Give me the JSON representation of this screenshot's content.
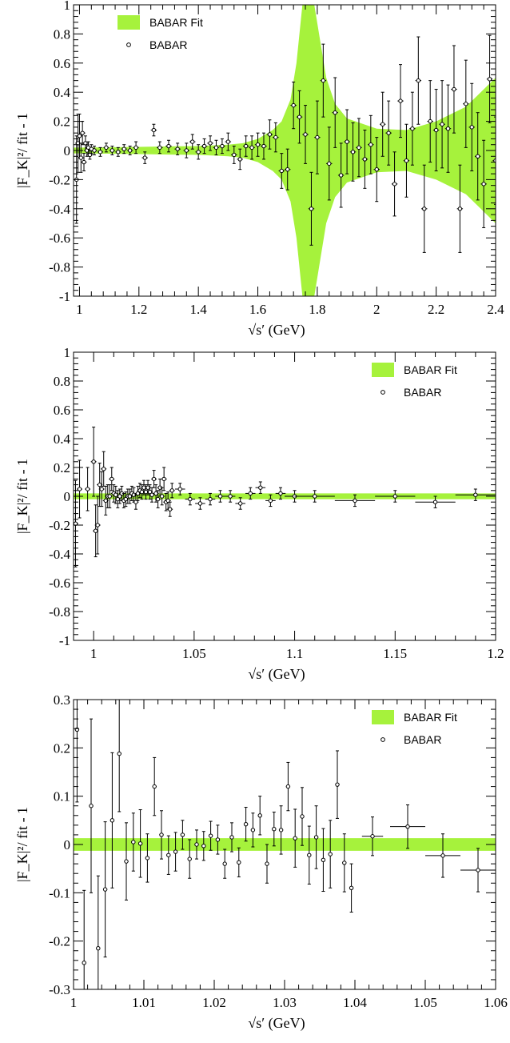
{
  "chart_data": [
    {
      "type": "scatter",
      "xlim": [
        0.98,
        2.4
      ],
      "ylim": [
        -1,
        1
      ],
      "x_ticks": [
        1,
        1.2,
        1.4,
        1.6,
        1.8,
        2,
        2.2,
        2.4
      ],
      "x_tick_labels": [
        "1",
        "1.2",
        "1.4",
        "1.6",
        "1.8",
        "2",
        "2.2",
        "2.4"
      ],
      "y_ticks": [
        -1,
        -0.8,
        -0.6,
        -0.4,
        -0.2,
        0,
        0.2,
        0.4,
        0.6,
        0.8,
        1
      ],
      "y_tick_labels": [
        "-1",
        "-0.8",
        "-0.6",
        "-0.4",
        "-0.2",
        "0",
        "0.2",
        "0.4",
        "0.6",
        "0.8",
        "1"
      ],
      "xlabel": "√s′   (GeV)",
      "ylabel": "|F_K|²/ fit - 1",
      "legend": {
        "placement": "top-left",
        "band_label": "BABAR Fit",
        "points_label": "BABAR"
      },
      "fit_band": {
        "x": [
          0.98,
          1.0,
          1.1,
          1.2,
          1.3,
          1.4,
          1.5,
          1.55,
          1.6,
          1.65,
          1.68,
          1.71,
          1.73,
          1.75,
          1.77,
          1.79,
          1.81,
          1.83,
          1.86,
          1.9,
          2.0,
          2.1,
          2.2,
          2.3,
          2.35,
          2.4
        ],
        "half_width": [
          0.02,
          0.02,
          0.022,
          0.025,
          0.028,
          0.03,
          0.04,
          0.05,
          0.08,
          0.14,
          0.2,
          0.35,
          0.6,
          1.0,
          1.0,
          1.0,
          0.75,
          0.5,
          0.32,
          0.22,
          0.15,
          0.14,
          0.2,
          0.3,
          0.4,
          0.5
        ]
      },
      "points": {
        "x": [
          0.99,
          0.995,
          1.0,
          1.005,
          1.01,
          1.015,
          1.02,
          1.025,
          1.03,
          1.035,
          1.04,
          1.05,
          1.07,
          1.09,
          1.11,
          1.13,
          1.15,
          1.17,
          1.19,
          1.22,
          1.25,
          1.27,
          1.3,
          1.33,
          1.36,
          1.38,
          1.4,
          1.42,
          1.44,
          1.46,
          1.48,
          1.5,
          1.52,
          1.54,
          1.56,
          1.58,
          1.6,
          1.62,
          1.64,
          1.66,
          1.68,
          1.7,
          1.72,
          1.74,
          1.76,
          1.78,
          1.8,
          1.82,
          1.84,
          1.86,
          1.88,
          1.9,
          1.92,
          1.94,
          1.96,
          1.98,
          2.0,
          2.02,
          2.04,
          2.06,
          2.08,
          2.1,
          2.12,
          2.14,
          2.16,
          2.18,
          2.2,
          2.22,
          2.24,
          2.26,
          2.28,
          2.3,
          2.32,
          2.34,
          2.36,
          2.38,
          2.4
        ],
        "y": [
          -0.2,
          0.05,
          0.1,
          -0.05,
          0.12,
          -0.08,
          0.05,
          0.0,
          0.02,
          -0.03,
          0.01,
          0.0,
          -0.01,
          0.02,
          0.0,
          -0.01,
          0.01,
          0.0,
          0.02,
          -0.05,
          0.14,
          0.02,
          0.03,
          0.01,
          0.0,
          0.06,
          -0.01,
          0.03,
          0.05,
          0.02,
          0.03,
          0.06,
          -0.03,
          -0.06,
          0.03,
          0.02,
          0.04,
          0.03,
          0.11,
          0.09,
          -0.14,
          -0.13,
          0.31,
          0.23,
          0.11,
          -0.4,
          0.09,
          0.48,
          -0.09,
          0.26,
          -0.17,
          0.06,
          -0.01,
          0.02,
          -0.06,
          0.04,
          -0.13,
          0.18,
          0.12,
          -0.23,
          0.34,
          -0.07,
          0.15,
          0.48,
          -0.4,
          0.2,
          0.14,
          0.18,
          0.15,
          0.42,
          -0.4,
          0.32,
          0.16,
          -0.04,
          -0.23,
          0.49,
          -0.07
        ],
        "yerr": [
          0.3,
          0.2,
          0.15,
          0.1,
          0.08,
          0.06,
          0.05,
          0.04,
          0.04,
          0.03,
          0.03,
          0.03,
          0.03,
          0.03,
          0.03,
          0.03,
          0.03,
          0.03,
          0.04,
          0.04,
          0.04,
          0.04,
          0.04,
          0.04,
          0.05,
          0.05,
          0.05,
          0.05,
          0.05,
          0.05,
          0.05,
          0.06,
          0.06,
          0.07,
          0.07,
          0.08,
          0.08,
          0.09,
          0.1,
          0.1,
          0.12,
          0.14,
          0.16,
          0.18,
          0.2,
          0.25,
          0.25,
          0.25,
          0.25,
          0.24,
          0.22,
          0.22,
          0.2,
          0.2,
          0.2,
          0.2,
          0.22,
          0.22,
          0.22,
          0.22,
          0.25,
          0.25,
          0.25,
          0.3,
          0.3,
          0.28,
          0.28,
          0.3,
          0.3,
          0.3,
          0.3,
          0.3,
          0.3,
          0.3,
          0.3,
          0.3,
          0.3
        ],
        "xerr": [
          0.002,
          0.002,
          0.002,
          0.002,
          0.002,
          0.002,
          0.002,
          0.002,
          0.002,
          0.002,
          0.002,
          0.005,
          0.005,
          0.005,
          0.005,
          0.005,
          0.005,
          0.005,
          0.005,
          0.01,
          0.01,
          0.01,
          0.01,
          0.01,
          0.01,
          0.01,
          0.01,
          0.01,
          0.01,
          0.01,
          0.01,
          0.01,
          0.01,
          0.01,
          0.01,
          0.01,
          0.01,
          0.01,
          0.01,
          0.01,
          0.01,
          0.01,
          0.01,
          0.01,
          0.01,
          0.01,
          0.01,
          0.01,
          0.01,
          0.01,
          0.01,
          0.01,
          0.01,
          0.01,
          0.01,
          0.01,
          0.01,
          0.01,
          0.01,
          0.01,
          0.01,
          0.01,
          0.01,
          0.01,
          0.01,
          0.01,
          0.01,
          0.01,
          0.01,
          0.01,
          0.01,
          0.01,
          0.01,
          0.01,
          0.01,
          0.01,
          0.01
        ]
      }
    },
    {
      "type": "scatter",
      "xlim": [
        0.99,
        1.2
      ],
      "ylim": [
        -1,
        1
      ],
      "x_ticks": [
        1,
        1.05,
        1.1,
        1.15,
        1.2
      ],
      "x_tick_labels": [
        "1",
        "1.05",
        "1.1",
        "1.15",
        "1.2"
      ],
      "y_ticks": [
        -1,
        -0.8,
        -0.6,
        -0.4,
        -0.2,
        0,
        0.2,
        0.4,
        0.6,
        0.8,
        1
      ],
      "y_tick_labels": [
        "-1",
        "-0.8",
        "-0.6",
        "-0.4",
        "-0.2",
        "0",
        "0.2",
        "0.4",
        "0.6",
        "0.8",
        "1"
      ],
      "xlabel": "√s′   (GeV)",
      "ylabel": "|F_K|²/ fit - 1",
      "legend": {
        "placement": "top-right",
        "band_label": "BABAR Fit",
        "points_label": "BABAR"
      },
      "fit_band": {
        "x": [
          0.99,
          1.0,
          1.05,
          1.1,
          1.15,
          1.2
        ],
        "half_width": [
          0.02,
          0.02,
          0.02,
          0.02,
          0.02,
          0.02
        ]
      },
      "points": {
        "x": [
          0.991,
          0.993,
          0.997,
          1.0,
          1.001,
          1.002,
          1.003,
          1.004,
          1.005,
          1.006,
          1.007,
          1.008,
          1.009,
          1.01,
          1.011,
          1.012,
          1.013,
          1.014,
          1.015,
          1.016,
          1.017,
          1.018,
          1.019,
          1.02,
          1.021,
          1.022,
          1.023,
          1.024,
          1.025,
          1.026,
          1.027,
          1.028,
          1.029,
          1.03,
          1.031,
          1.032,
          1.033,
          1.034,
          1.035,
          1.036,
          1.037,
          1.038,
          1.039,
          1.043,
          1.048,
          1.053,
          1.058,
          1.063,
          1.068,
          1.073,
          1.078,
          1.083,
          1.088,
          1.093,
          1.1,
          1.11,
          1.13,
          1.15,
          1.17,
          1.19
        ],
        "y": [
          -0.19,
          0.05,
          0.05,
          0.24,
          -0.24,
          -0.2,
          0.08,
          0.05,
          0.19,
          -0.03,
          0.0,
          0.0,
          0.12,
          0.02,
          0.01,
          -0.02,
          0.0,
          0.02,
          -0.03,
          -0.02,
          0.0,
          0.0,
          0.02,
          0.01,
          -0.04,
          0.02,
          0.04,
          0.03,
          0.06,
          0.03,
          0.06,
          0.03,
          0.01,
          0.12,
          0.02,
          -0.02,
          0.06,
          0.0,
          0.12,
          -0.04,
          -0.03,
          -0.09,
          0.04,
          0.05,
          -0.02,
          -0.05,
          -0.02,
          0.0,
          0.0,
          -0.05,
          0.02,
          0.06,
          -0.03,
          0.02,
          0.0,
          0.0,
          -0.03,
          0.0,
          -0.04,
          0.01
        ],
        "yerr": [
          0.3,
          0.2,
          0.15,
          0.24,
          0.18,
          0.2,
          0.15,
          0.12,
          0.12,
          0.1,
          0.08,
          0.08,
          0.08,
          0.06,
          0.06,
          0.06,
          0.05,
          0.05,
          0.05,
          0.05,
          0.05,
          0.05,
          0.05,
          0.05,
          0.05,
          0.05,
          0.05,
          0.05,
          0.05,
          0.05,
          0.05,
          0.05,
          0.05,
          0.06,
          0.06,
          0.06,
          0.06,
          0.06,
          0.08,
          0.06,
          0.06,
          0.05,
          0.05,
          0.04,
          0.04,
          0.04,
          0.04,
          0.04,
          0.04,
          0.04,
          0.04,
          0.04,
          0.04,
          0.04,
          0.04,
          0.04,
          0.04,
          0.04,
          0.04,
          0.04
        ],
        "xerr": [
          0.0005,
          0.0005,
          0.0005,
          0.0005,
          0.0005,
          0.0005,
          0.0005,
          0.0005,
          0.0005,
          0.0005,
          0.0005,
          0.0005,
          0.0005,
          0.0005,
          0.0005,
          0.0005,
          0.0005,
          0.0005,
          0.0005,
          0.0005,
          0.0005,
          0.0005,
          0.0005,
          0.0005,
          0.0005,
          0.0005,
          0.0005,
          0.0005,
          0.0005,
          0.0005,
          0.0005,
          0.0005,
          0.0005,
          0.0005,
          0.0005,
          0.0005,
          0.0005,
          0.0005,
          0.0005,
          0.0005,
          0.0005,
          0.0005,
          0.0005,
          0.0025,
          0.0025,
          0.0025,
          0.0025,
          0.0025,
          0.0025,
          0.0025,
          0.0025,
          0.0025,
          0.0025,
          0.0025,
          0.005,
          0.01,
          0.01,
          0.01,
          0.01,
          0.01
        ]
      }
    },
    {
      "type": "scatter",
      "xlim": [
        1.0,
        1.06
      ],
      "ylim": [
        -0.3,
        0.3
      ],
      "x_ticks": [
        1,
        1.01,
        1.02,
        1.03,
        1.04,
        1.05,
        1.06
      ],
      "x_tick_labels": [
        "1",
        "1.01",
        "1.02",
        "1.03",
        "1.04",
        "1.05",
        "1.06"
      ],
      "y_ticks": [
        -0.3,
        -0.2,
        -0.1,
        0,
        0.1,
        0.2,
        0.3
      ],
      "y_tick_labels": [
        "-0.3",
        "-0.2",
        "-0.1",
        "0",
        "0.1",
        "0.2",
        "0.3"
      ],
      "xlabel": "√s′   (GeV)",
      "ylabel": "|F_K|²/ fit - 1",
      "legend": {
        "placement": "top-right",
        "band_label": "BABAR Fit",
        "points_label": "BABAR"
      },
      "fit_band": {
        "x": [
          1.0,
          1.01,
          1.02,
          1.03,
          1.04,
          1.05,
          1.06
        ],
        "half_width": [
          0.013,
          0.013,
          0.013,
          0.013,
          0.013,
          0.013,
          0.013
        ]
      },
      "points": {
        "x": [
          1.0005,
          1.0015,
          1.0025,
          1.0035,
          1.0045,
          1.0055,
          1.0065,
          1.0075,
          1.0085,
          1.0095,
          1.0105,
          1.0115,
          1.0125,
          1.0135,
          1.0145,
          1.0155,
          1.0165,
          1.0175,
          1.0185,
          1.0195,
          1.0205,
          1.0215,
          1.0225,
          1.0235,
          1.0245,
          1.0255,
          1.0265,
          1.0275,
          1.0285,
          1.0295,
          1.0305,
          1.0315,
          1.0325,
          1.0335,
          1.0345,
          1.0355,
          1.0365,
          1.0375,
          1.0385,
          1.0395,
          1.0425,
          1.0475,
          1.0525,
          1.0575
        ],
        "y": [
          0.238,
          -0.245,
          0.08,
          -0.215,
          -0.093,
          0.05,
          0.188,
          -0.035,
          0.005,
          0.002,
          -0.028,
          0.12,
          0.02,
          -0.022,
          -0.015,
          0.02,
          -0.03,
          0.0,
          -0.003,
          0.018,
          0.01,
          -0.04,
          0.015,
          -0.037,
          0.042,
          0.03,
          0.06,
          -0.04,
          0.032,
          0.03,
          0.12,
          0.013,
          0.058,
          -0.022,
          0.015,
          -0.032,
          -0.02,
          0.124,
          -0.038,
          -0.09,
          0.017,
          0.037,
          -0.023,
          -0.053
        ],
        "yerr": [
          0.15,
          0.15,
          0.18,
          0.15,
          0.14,
          0.14,
          0.12,
          0.08,
          0.06,
          0.07,
          0.05,
          0.06,
          0.05,
          0.04,
          0.04,
          0.03,
          0.04,
          0.03,
          0.03,
          0.03,
          0.03,
          0.03,
          0.03,
          0.03,
          0.035,
          0.035,
          0.04,
          0.04,
          0.035,
          0.05,
          0.05,
          0.06,
          0.06,
          0.06,
          0.065,
          0.065,
          0.07,
          0.07,
          0.06,
          0.05,
          0.04,
          0.045,
          0.045,
          0.045
        ],
        "xerr": [
          0.0003,
          0.0003,
          0.0003,
          0.0003,
          0.0003,
          0.0003,
          0.0003,
          0.0003,
          0.0003,
          0.0003,
          0.0003,
          0.0003,
          0.0003,
          0.0003,
          0.0003,
          0.0003,
          0.0003,
          0.0003,
          0.0003,
          0.0003,
          0.0003,
          0.0003,
          0.0003,
          0.0003,
          0.0003,
          0.0003,
          0.0003,
          0.0003,
          0.0003,
          0.0003,
          0.0003,
          0.0003,
          0.0003,
          0.0003,
          0.0003,
          0.0003,
          0.0003,
          0.0003,
          0.0003,
          0.0003,
          0.0015,
          0.0025,
          0.0025,
          0.0025
        ]
      }
    }
  ],
  "colors": {
    "band": "#a6f23c",
    "ink": "#000000",
    "background": "#ffffff"
  }
}
